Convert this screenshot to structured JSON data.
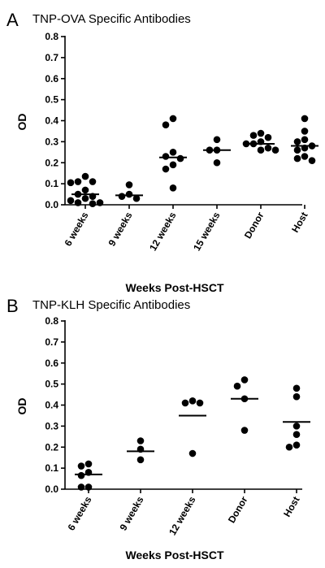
{
  "chart_data": [
    {
      "type": "scatter",
      "panel": "A",
      "title": "TNP-OVA Specific Antibodies",
      "xlabel": "Weeks  Post-HSCT",
      "ylabel": "OD",
      "ylim": [
        0,
        0.8
      ],
      "yticks": [
        "0.0",
        "0.1",
        "0.2",
        "0.3",
        "0.4",
        "0.5",
        "0.6",
        "0.7",
        "0.8"
      ],
      "categories": [
        "6 weeks",
        "9 weeks",
        "12 weeks",
        "15 weeks",
        "Donor",
        "Host"
      ],
      "groups": [
        {
          "category": "6 weeks",
          "mean": 0.05,
          "points": [
            0.135,
            0.11,
            0.11,
            0.105,
            0.07,
            0.05,
            0.04,
            0.03,
            0.02,
            0.01,
            0.01,
            0.005
          ]
        },
        {
          "category": "9 weeks",
          "mean": 0.045,
          "points": [
            0.095,
            0.05,
            0.04,
            0.03
          ]
        },
        {
          "category": "12 weeks",
          "mean": 0.225,
          "points": [
            0.41,
            0.38,
            0.25,
            0.23,
            0.22,
            0.19,
            0.17,
            0.08
          ]
        },
        {
          "category": "15 weeks",
          "mean": 0.26,
          "points": [
            0.31,
            0.26,
            0.26,
            0.2
          ]
        },
        {
          "category": "Donor",
          "mean": 0.29,
          "points": [
            0.34,
            0.33,
            0.32,
            0.3,
            0.29,
            0.29,
            0.27,
            0.26,
            0.26
          ]
        },
        {
          "category": "Host",
          "mean": 0.28,
          "points": [
            0.41,
            0.35,
            0.31,
            0.3,
            0.28,
            0.27,
            0.26,
            0.23,
            0.22,
            0.21
          ]
        }
      ]
    },
    {
      "type": "scatter",
      "panel": "B",
      "title": "TNP-KLH Specific Antibodies",
      "xlabel": "Weeks  Post-HSCT",
      "ylabel": "OD",
      "ylim": [
        0,
        0.8
      ],
      "yticks": [
        "0.0",
        "0.1",
        "0.2",
        "0.3",
        "0.4",
        "0.5",
        "0.6",
        "0.7",
        "0.8"
      ],
      "categories": [
        "6 weeks",
        "9 weeks",
        "12 weeks",
        "Donor",
        "Host"
      ],
      "groups": [
        {
          "category": "6 weeks",
          "mean": 0.07,
          "points": [
            0.12,
            0.11,
            0.08,
            0.065,
            0.01,
            0.01
          ]
        },
        {
          "category": "9 weeks",
          "mean": 0.18,
          "points": [
            0.23,
            0.19,
            0.14
          ]
        },
        {
          "category": "12 weeks",
          "mean": 0.35,
          "points": [
            0.42,
            0.41,
            0.41,
            0.17
          ]
        },
        {
          "category": "Donor",
          "mean": 0.43,
          "points": [
            0.52,
            0.49,
            0.43,
            0.28
          ]
        },
        {
          "category": "Host",
          "mean": 0.32,
          "points": [
            0.48,
            0.44,
            0.3,
            0.26,
            0.21,
            0.2
          ]
        }
      ]
    }
  ]
}
